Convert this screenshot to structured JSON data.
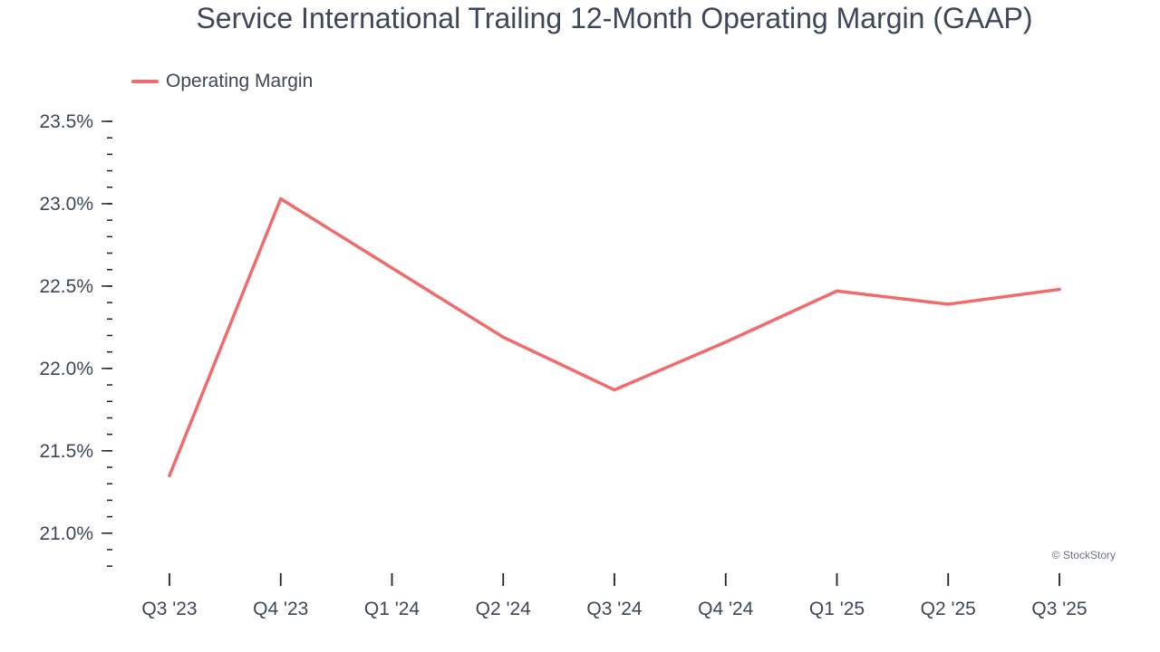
{
  "chart_data": {
    "type": "line",
    "title": "Service International Trailing 12-Month Operating Margin (GAAP)",
    "categories": [
      "Q3 '23",
      "Q4 '23",
      "Q1 '24",
      "Q2 '24",
      "Q3 '24",
      "Q4 '24",
      "Q1 '25",
      "Q2 '25",
      "Q3 '25"
    ],
    "series": [
      {
        "name": "Operating Margin",
        "color": "#f26b6b",
        "values": [
          21.35,
          23.03,
          22.61,
          22.19,
          21.87,
          22.16,
          22.47,
          22.39,
          22.48
        ]
      }
    ],
    "y_ticks": [
      "21.0%",
      "21.5%",
      "22.0%",
      "22.5%",
      "23.0%",
      "23.5%"
    ],
    "y_tick_values": [
      21.0,
      21.5,
      22.0,
      22.5,
      23.0,
      23.5
    ],
    "ylim": [
      20.79,
      23.5
    ],
    "legend_position": "top-left",
    "grid": false
  },
  "watermark": "© StockStory"
}
